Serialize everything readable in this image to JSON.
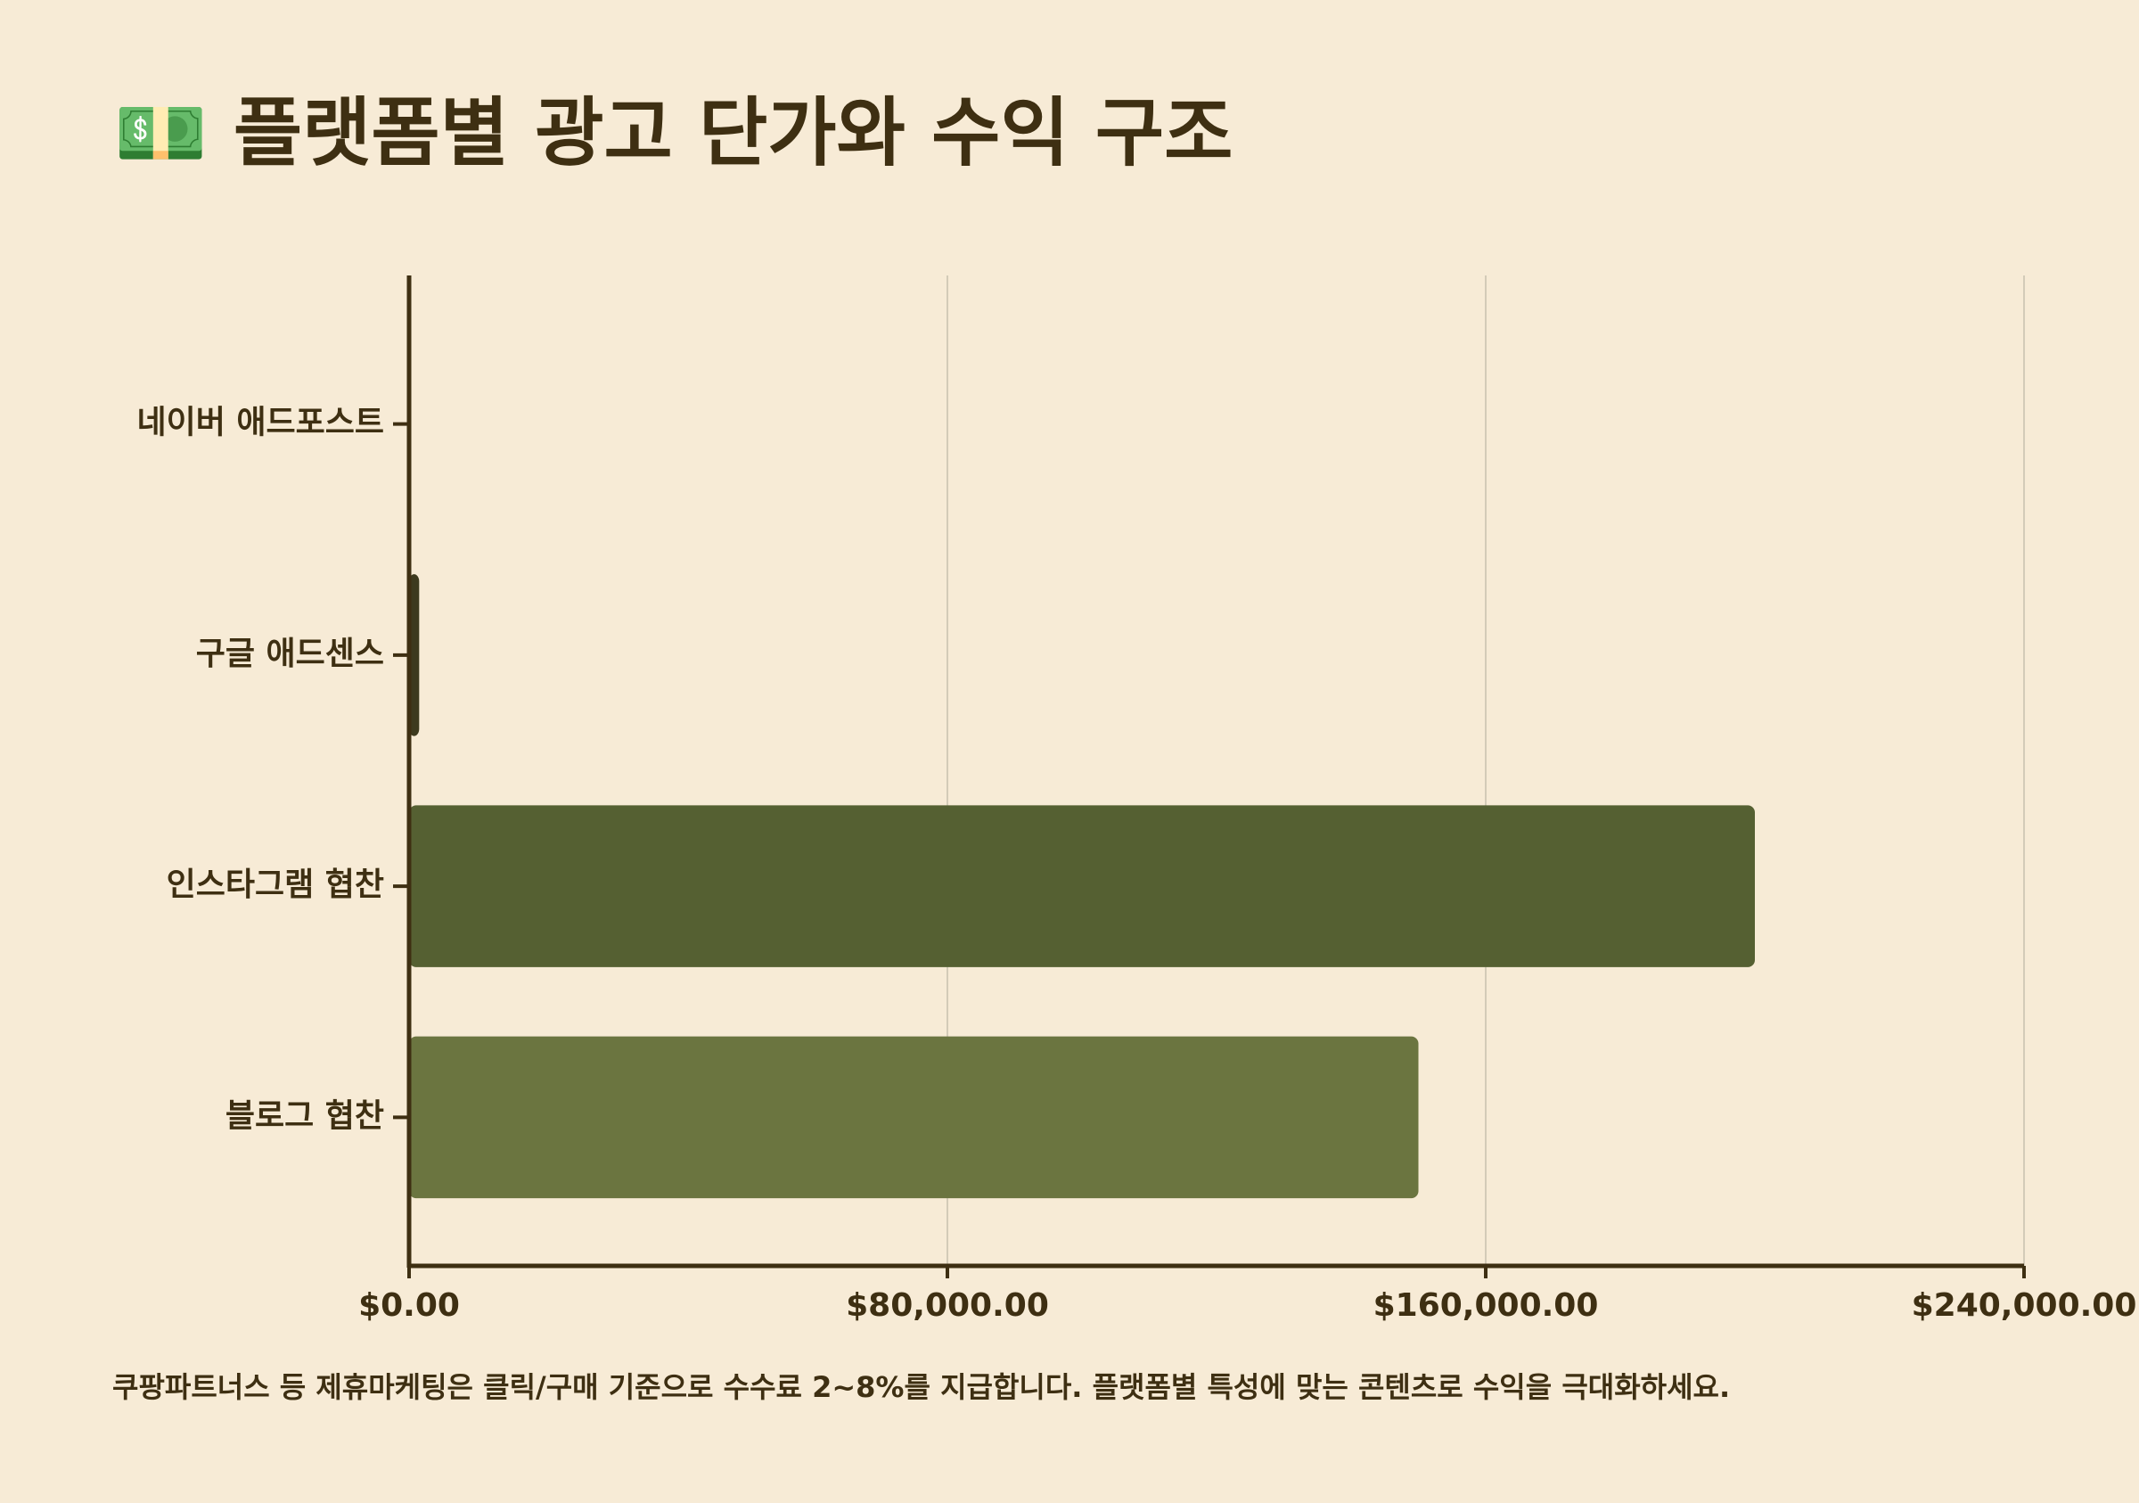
{
  "chart_data": {
    "type": "barh",
    "title": "💵 플랫폼별 광고 단가와 수익 구조",
    "categories": [
      "네이버 애드포스트",
      "구글 애드센스",
      "인스타그램 협찬",
      "블로그 협찬"
    ],
    "values": [
      100,
      1500,
      200000,
      150000
    ],
    "colors": [
      "#3d3a1e",
      "#3d3a1e",
      "#556032",
      "#6b7540"
    ],
    "xlim": [
      0,
      240000
    ],
    "xticks": [
      {
        "value": 0,
        "label": "$0.00"
      },
      {
        "value": 80000,
        "label": "$80,000.00"
      },
      {
        "value": 160000,
        "label": "$160,000.00"
      },
      {
        "value": 240000,
        "label": "$240,000.00"
      }
    ],
    "grid": true,
    "note": "쿠팡파트너스 등 제휴마케팅은 클릭/구매 기준으로 수수료 2~8%를 지급합니다. 플랫폼별 특성에 맞는 콘텐츠로 수익을 극대화하세요."
  }
}
